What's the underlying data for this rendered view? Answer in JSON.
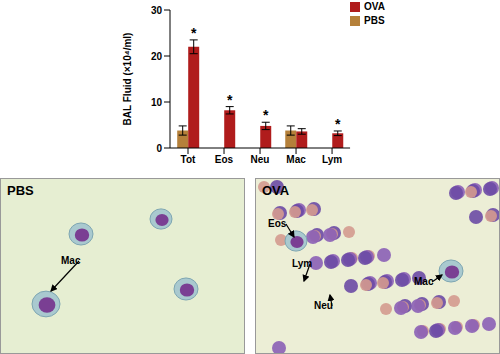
{
  "chart_data": {
    "type": "bar",
    "y_label": "BAL Fluid (×10⁴/ml)",
    "categories": [
      "Tot",
      "Eos",
      "Neu",
      "Mac",
      "Lym"
    ],
    "series": [
      {
        "name": "PBS",
        "color": "#b5803a",
        "values": [
          3.8,
          0,
          0,
          3.8,
          0
        ],
        "errors": [
          1.0,
          0,
          0,
          1.0,
          0
        ]
      },
      {
        "name": "OVA",
        "color": "#b01c1c",
        "values": [
          22,
          8.2,
          4.8,
          3.6,
          3.2
        ],
        "errors": [
          1.5,
          0.8,
          0.8,
          0.6,
          0.5
        ]
      }
    ],
    "ylim": [
      0,
      30
    ],
    "yticks": [
      0,
      10,
      20,
      30
    ],
    "legend": "upper right",
    "annotations": [
      {
        "text": "*",
        "series": "OVA",
        "category": "Tot"
      },
      {
        "text": "*",
        "series": "OVA",
        "category": "Eos"
      },
      {
        "text": "*",
        "series": "OVA",
        "category": "Neu"
      },
      {
        "text": "*",
        "series": "OVA",
        "category": "Lym"
      }
    ]
  },
  "panels": [
    {
      "label": "PBS",
      "annotations": [
        "Mac"
      ]
    },
    {
      "label": "OVA",
      "annotations": [
        "Eos",
        "Lym",
        "Neu",
        "Mac"
      ]
    }
  ]
}
